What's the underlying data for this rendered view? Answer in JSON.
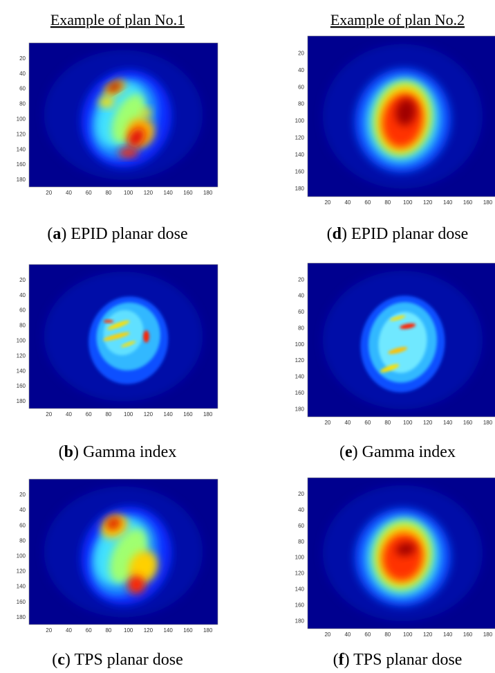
{
  "ticks": [
    20,
    40,
    60,
    80,
    100,
    120,
    140,
    160,
    180
  ],
  "columns": [
    {
      "title": "Example of plan No.1",
      "panels": [
        {
          "open": "(",
          "letter": "a",
          "text": ") EPID planar dose"
        },
        {
          "open": "(",
          "letter": "b",
          "text": ") Gamma index"
        },
        {
          "open": "(",
          "letter": "c",
          "text": ") TPS planar dose"
        }
      ]
    },
    {
      "title": "Example of plan No.2",
      "panels": [
        {
          "open": "(",
          "letter": "d",
          "text": ") EPID planar dose"
        },
        {
          "open": "(",
          "letter": "e",
          "text": ") Gamma index"
        },
        {
          "open": "(",
          "letter": "f",
          "text": ") TPS planar dose"
        }
      ]
    }
  ]
}
